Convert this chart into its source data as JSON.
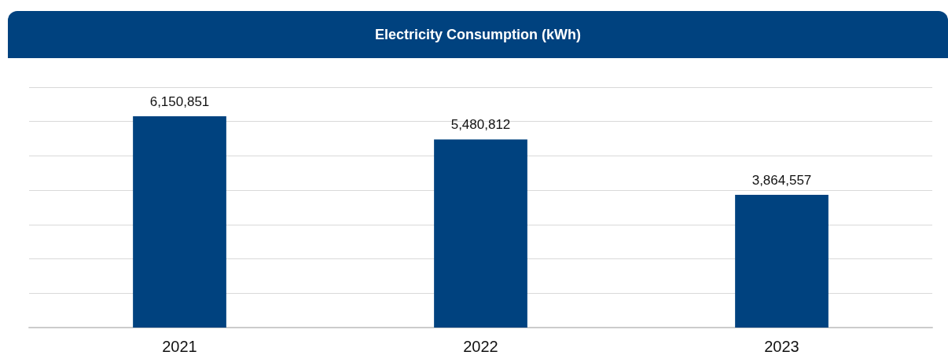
{
  "chart_data": {
    "type": "bar",
    "title": "Electricity Consumption (kWh)",
    "categories": [
      "2021",
      "2022",
      "2023"
    ],
    "values": [
      6150851,
      5480812,
      3864557
    ],
    "value_labels": [
      "6,150,851",
      "5,480,812",
      "3,864,557"
    ],
    "color": "#00427f",
    "grid": "y"
  }
}
